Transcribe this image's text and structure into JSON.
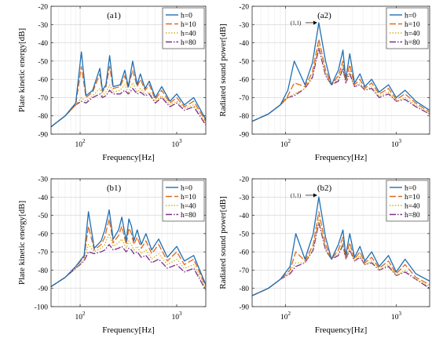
{
  "chart_data": [
    {
      "type": "line",
      "panel_tag": "(a1)",
      "xlabel": "Frequency[Hz]",
      "ylabel": "Plate kinetic energy[dB]",
      "xscale": "log",
      "xlim": [
        50,
        2000
      ],
      "ylim": [
        -90,
        -20
      ],
      "yticks": [
        -90,
        -80,
        -70,
        -60,
        -50,
        -40,
        -30,
        -20
      ],
      "ytick_labels": [
        "-90",
        "-80",
        "-70",
        "-60",
        "-50",
        "-40",
        "-30",
        "-20"
      ],
      "xticks": [
        100,
        1000
      ],
      "xtick_labels": [
        "10",
        "10"
      ],
      "xtick_exponents": [
        "2",
        "3"
      ],
      "grid": true,
      "legend_position": "top-right",
      "annotation": null,
      "x": [
        50,
        70,
        90,
        103,
        115,
        135,
        160,
        170,
        185,
        202,
        220,
        260,
        290,
        315,
        330,
        350,
        390,
        420,
        470,
        520,
        600,
        700,
        850,
        1000,
        1200,
        1500,
        2000
      ],
      "series": [
        {
          "name": "h=0",
          "color": "#1f6fb4",
          "dash": "solid",
          "values": [
            -86,
            -80,
            -73,
            -45,
            -69,
            -66,
            -54,
            -66,
            -63,
            -47,
            -64,
            -63,
            -55,
            -64,
            -58,
            -50,
            -63,
            -57,
            -65,
            -61,
            -70,
            -64,
            -72,
            -68,
            -74,
            -70,
            -82
          ]
        },
        {
          "name": "h=10",
          "color": "#e06a1b",
          "dash": "8,3",
          "values": [
            -86,
            -80,
            -74,
            -53,
            -70,
            -67,
            -57,
            -67,
            -64,
            -53,
            -65,
            -64,
            -58,
            -65,
            -60,
            -55,
            -64,
            -60,
            -66,
            -63,
            -71,
            -66,
            -73,
            -70,
            -75,
            -72,
            -83
          ]
        },
        {
          "name": "h=40",
          "color": "#d9b01e",
          "dash": "1.5,2",
          "values": [
            -86,
            -80,
            -74,
            -70,
            -72,
            -69,
            -65,
            -69,
            -67,
            -63,
            -67,
            -66,
            -63,
            -67,
            -65,
            -62,
            -67,
            -65,
            -68,
            -67,
            -72,
            -69,
            -74,
            -72,
            -76,
            -74,
            -84
          ]
        },
        {
          "name": "h=80",
          "color": "#7b2d8e",
          "dash": "8,2,1.5,2",
          "values": [
            -86,
            -80,
            -74,
            -72,
            -73,
            -70,
            -68,
            -70,
            -69,
            -66,
            -68,
            -68,
            -66,
            -68,
            -67,
            -65,
            -68,
            -67,
            -69,
            -68,
            -73,
            -70,
            -75,
            -73,
            -77,
            -75,
            -85
          ]
        }
      ]
    },
    {
      "type": "line",
      "panel_tag": "(a2)",
      "xlabel": "Frequency[Hz]",
      "ylabel": "Radiated sound power[dB]",
      "xscale": "log",
      "xlim": [
        50,
        2000
      ],
      "ylim": [
        -90,
        -20
      ],
      "yticks": [
        -90,
        -80,
        -70,
        -60,
        -50,
        -40,
        -30,
        -20
      ],
      "ytick_labels": [
        "-90",
        "-80",
        "-70",
        "-60",
        "-50",
        "-40",
        "-30",
        "-20"
      ],
      "xticks": [
        100,
        1000
      ],
      "xtick_labels": [
        "10",
        "10"
      ],
      "xtick_exponents": [
        "2",
        "3"
      ],
      "grid": true,
      "legend_position": "top-right",
      "annotation": {
        "text": "(1,1)",
        "x": 200,
        "y": -29
      },
      "x": [
        50,
        70,
        90,
        105,
        120,
        150,
        175,
        200,
        230,
        260,
        300,
        330,
        350,
        380,
        420,
        470,
        520,
        600,
        700,
        850,
        1000,
        1200,
        1500,
        2000
      ],
      "series": [
        {
          "name": "h=0",
          "color": "#1f6fb4",
          "dash": "solid",
          "values": [
            -83,
            -79,
            -74,
            -66,
            -50,
            -63,
            -51,
            -29,
            -50,
            -63,
            -55,
            -44,
            -60,
            -46,
            -62,
            -57,
            -64,
            -60,
            -67,
            -63,
            -70,
            -66,
            -72,
            -77
          ]
        },
        {
          "name": "h=10",
          "color": "#e06a1b",
          "dash": "8,3",
          "values": [
            -83,
            -79,
            -74,
            -69,
            -62,
            -64,
            -56,
            -38,
            -55,
            -63,
            -58,
            -50,
            -61,
            -52,
            -63,
            -60,
            -65,
            -62,
            -68,
            -65,
            -71,
            -68,
            -73,
            -78
          ]
        },
        {
          "name": "h=40",
          "color": "#d9b01e",
          "dash": "1.5,2",
          "values": [
            -83,
            -79,
            -74,
            -70,
            -68,
            -65,
            -58,
            -41,
            -57,
            -63,
            -60,
            -52,
            -62,
            -55,
            -64,
            -62,
            -66,
            -64,
            -69,
            -67,
            -72,
            -70,
            -74,
            -79
          ]
        },
        {
          "name": "h=80",
          "color": "#7b2d8e",
          "dash": "8,2,1.5,2",
          "values": [
            -83,
            -79,
            -74,
            -70,
            -69,
            -65,
            -59,
            -43,
            -58,
            -63,
            -61,
            -54,
            -62,
            -57,
            -64,
            -63,
            -66,
            -65,
            -70,
            -68,
            -72,
            -71,
            -75,
            -79
          ]
        }
      ]
    },
    {
      "type": "line",
      "panel_tag": "(b1)",
      "xlabel": "Frequency[Hz]",
      "ylabel": "Plate kinetic energy[dB]",
      "xscale": "log",
      "xlim": [
        50,
        2000
      ],
      "ylim": [
        -100,
        -30
      ],
      "yticks": [
        -100,
        -90,
        -80,
        -70,
        -60,
        -50,
        -40,
        -30
      ],
      "ytick_labels": [
        "-100",
        "-90",
        "-80",
        "-70",
        "-60",
        "-50",
        "-40",
        "-30"
      ],
      "xticks": [
        100,
        1000
      ],
      "xtick_labels": [
        "10",
        "10"
      ],
      "xtick_exponents": [
        "2",
        "3"
      ],
      "grid": true,
      "legend_position": "top-right",
      "annotation": null,
      "x": [
        50,
        70,
        90,
        110,
        122,
        140,
        165,
        180,
        200,
        220,
        250,
        270,
        300,
        320,
        340,
        360,
        390,
        430,
        480,
        550,
        650,
        800,
        1000,
        1200,
        1500,
        2000
      ],
      "series": [
        {
          "name": "h=0",
          "color": "#1f6fb4",
          "dash": "solid",
          "values": [
            -89,
            -84,
            -78,
            -72,
            -48,
            -68,
            -64,
            -58,
            -47,
            -63,
            -58,
            -51,
            -64,
            -52,
            -56,
            -64,
            -58,
            -66,
            -60,
            -69,
            -63,
            -73,
            -67,
            -75,
            -72,
            -88
          ]
        },
        {
          "name": "h=10",
          "color": "#e06a1b",
          "dash": "8,3",
          "values": [
            -89,
            -84,
            -78,
            -73,
            -56,
            -69,
            -66,
            -62,
            -52,
            -65,
            -61,
            -56,
            -66,
            -57,
            -60,
            -66,
            -62,
            -68,
            -64,
            -71,
            -66,
            -75,
            -70,
            -77,
            -74,
            -89
          ]
        },
        {
          "name": "h=40",
          "color": "#d9b01e",
          "dash": "1.5,2",
          "values": [
            -89,
            -84,
            -79,
            -74,
            -66,
            -70,
            -68,
            -66,
            -60,
            -67,
            -65,
            -63,
            -68,
            -64,
            -66,
            -69,
            -67,
            -71,
            -69,
            -74,
            -71,
            -77,
            -74,
            -79,
            -77,
            -90
          ]
        },
        {
          "name": "h=80",
          "color": "#7b2d8e",
          "dash": "8,2,1.5,2",
          "values": [
            -89,
            -84,
            -79,
            -75,
            -70,
            -71,
            -70,
            -69,
            -66,
            -69,
            -68,
            -67,
            -70,
            -68,
            -69,
            -71,
            -70,
            -73,
            -72,
            -76,
            -74,
            -79,
            -77,
            -81,
            -79,
            -91
          ]
        }
      ]
    },
    {
      "type": "line",
      "panel_tag": "(b2)",
      "xlabel": "Frequency[Hz]",
      "ylabel": "Radiated sound power[dB]",
      "xscale": "log",
      "xlim": [
        50,
        2000
      ],
      "ylim": [
        -90,
        -20
      ],
      "yticks": [
        -90,
        -80,
        -70,
        -60,
        -50,
        -40,
        -30,
        -20
      ],
      "ytick_labels": [
        "-90",
        "-80",
        "-70",
        "-60",
        "-50",
        "-40",
        "-30",
        "-20"
      ],
      "xticks": [
        100,
        1000
      ],
      "xtick_labels": [
        "10",
        "10"
      ],
      "xtick_exponents": [
        "2",
        "3"
      ],
      "grid": true,
      "legend_position": "top-right",
      "annotation": {
        "text": "(1,1)",
        "x": 200,
        "y": -29
      },
      "x": [
        50,
        70,
        90,
        110,
        124,
        150,
        178,
        200,
        230,
        260,
        300,
        330,
        350,
        380,
        420,
        470,
        520,
        600,
        700,
        850,
        1000,
        1200,
        1500,
        2000
      ],
      "series": [
        {
          "name": "h=0",
          "color": "#1f6fb4",
          "dash": "solid",
          "values": [
            -84,
            -80,
            -75,
            -68,
            -50,
            -64,
            -50,
            -30,
            -52,
            -64,
            -56,
            -48,
            -62,
            -50,
            -63,
            -57,
            -65,
            -60,
            -68,
            -62,
            -71,
            -64,
            -72,
            -76
          ]
        },
        {
          "name": "h=10",
          "color": "#e06a1b",
          "dash": "8,3",
          "values": [
            -84,
            -80,
            -75,
            -70,
            -60,
            -65,
            -56,
            -38,
            -56,
            -64,
            -59,
            -52,
            -63,
            -55,
            -64,
            -60,
            -66,
            -63,
            -69,
            -65,
            -72,
            -67,
            -74,
            -78
          ]
        },
        {
          "name": "h=40",
          "color": "#d9b01e",
          "dash": "1.5,2",
          "values": [
            -84,
            -80,
            -75,
            -71,
            -66,
            -66,
            -58,
            -42,
            -58,
            -64,
            -61,
            -55,
            -64,
            -58,
            -65,
            -62,
            -67,
            -65,
            -70,
            -67,
            -73,
            -70,
            -75,
            -79
          ]
        },
        {
          "name": "h=80",
          "color": "#7b2d8e",
          "dash": "8,2,1.5,2",
          "values": [
            -84,
            -80,
            -75,
            -72,
            -68,
            -66,
            -59,
            -44,
            -59,
            -64,
            -62,
            -56,
            -64,
            -59,
            -65,
            -63,
            -67,
            -66,
            -70,
            -68,
            -73,
            -71,
            -75,
            -80
          ]
        }
      ]
    }
  ]
}
